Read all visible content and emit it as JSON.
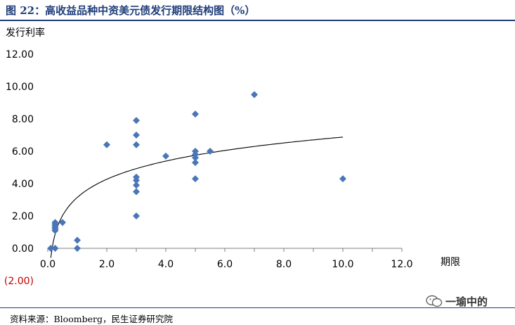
{
  "title": "图 22：高收益品种中资美元债发行期限结构图（%）",
  "source": "资料来源：Bloomberg，民生证券研究院",
  "watermark": "一瑜中的",
  "colors": {
    "title": "#1f3d7a",
    "points": "#4a76b8",
    "negative_tick": "#c00000",
    "trend": "#000000"
  },
  "chart_data": {
    "type": "scatter",
    "title": "",
    "xlabel": "期限",
    "ylabel": "发行利率",
    "xlim": [
      0,
      12
    ],
    "ylim": [
      -2,
      12
    ],
    "x_ticks": [
      "0.0",
      "2.0",
      "4.0",
      "6.0",
      "8.0",
      "10.0",
      "12.0"
    ],
    "y_ticks": [
      "(2.00)",
      "0.00",
      "2.00",
      "4.00",
      "6.00",
      "8.00",
      "10.00",
      "12.00"
    ],
    "grid": false,
    "legend": "none",
    "series": [
      {
        "points": [
          {
            "x": 0.1,
            "y": 0.0
          },
          {
            "x": 0.25,
            "y": 0.0
          },
          {
            "x": 0.25,
            "y": 1.1
          },
          {
            "x": 0.25,
            "y": 1.2
          },
          {
            "x": 0.25,
            "y": 1.3
          },
          {
            "x": 0.25,
            "y": 1.4
          },
          {
            "x": 0.25,
            "y": 1.5
          },
          {
            "x": 0.25,
            "y": 1.6
          },
          {
            "x": 0.5,
            "y": 1.6
          },
          {
            "x": 1.0,
            "y": 0.0
          },
          {
            "x": 1.0,
            "y": 0.5
          },
          {
            "x": 2.0,
            "y": 6.4
          },
          {
            "x": 3.0,
            "y": 7.9
          },
          {
            "x": 3.0,
            "y": 7.0
          },
          {
            "x": 3.0,
            "y": 6.4
          },
          {
            "x": 3.0,
            "y": 4.4
          },
          {
            "x": 3.0,
            "y": 4.2
          },
          {
            "x": 3.0,
            "y": 3.9
          },
          {
            "x": 3.0,
            "y": 3.5
          },
          {
            "x": 3.0,
            "y": 2.0
          },
          {
            "x": 4.0,
            "y": 5.7
          },
          {
            "x": 5.0,
            "y": 8.3
          },
          {
            "x": 5.0,
            "y": 6.0
          },
          {
            "x": 5.0,
            "y": 5.8
          },
          {
            "x": 5.0,
            "y": 5.6
          },
          {
            "x": 5.0,
            "y": 5.3
          },
          {
            "x": 5.0,
            "y": 4.3
          },
          {
            "x": 5.5,
            "y": 6.0
          },
          {
            "x": 7.0,
            "y": 9.5
          },
          {
            "x": 10.0,
            "y": 4.3
          }
        ]
      }
    ],
    "trendline": {
      "type": "logarithmic",
      "x_start": 0.1,
      "x_end": 10.0
    }
  }
}
